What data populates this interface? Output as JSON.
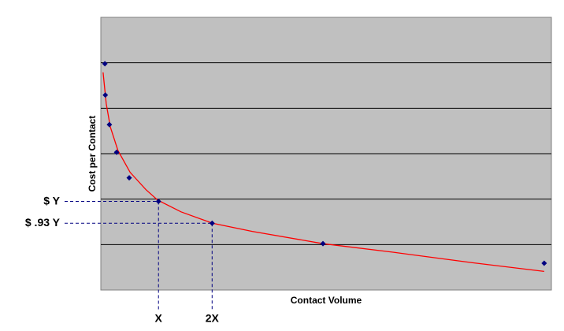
{
  "chart_data": {
    "type": "scatter",
    "x_label": "Contact Volume",
    "y_label": "Cost per Contact",
    "xlim": [
      0,
      100
    ],
    "ylim": [
      0,
      6
    ],
    "gridlines": [
      1,
      2,
      3,
      4,
      5
    ],
    "background": "#c0c0c0",
    "series": [
      {
        "color": "#000080",
        "x": [
          0.9,
          1.0,
          1.9,
          3.5,
          6.3,
          12.8,
          24.7,
          49.3,
          98.4
        ],
        "values": [
          4.98,
          4.29,
          3.64,
          3.03,
          2.47,
          1.95,
          1.47,
          1.02,
          0.59
        ]
      },
      {
        "color": "#ff0000",
        "style": "trend",
        "x": [
          0.5,
          1.2,
          2.1,
          3.8,
          6.5,
          10.0,
          12.6,
          17.8,
          24.8,
          33.6,
          49.3,
          65.0,
          82.5,
          98.4
        ],
        "values": [
          4.79,
          4.1,
          3.59,
          3.07,
          2.59,
          2.21,
          1.98,
          1.72,
          1.47,
          1.29,
          1.02,
          0.83,
          0.6,
          0.41
        ]
      }
    ],
    "annotations": {
      "y_labels": [
        "$ Y",
        "$ .93 Y"
      ],
      "x_labels": [
        "X",
        "2X"
      ],
      "color": "#000080"
    }
  }
}
